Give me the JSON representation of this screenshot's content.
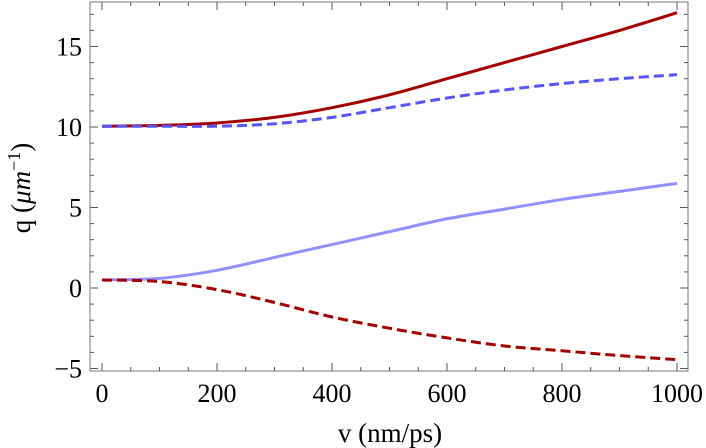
{
  "chart_data": {
    "type": "line",
    "title": "",
    "xlabel": "v (nm/ps)",
    "ylabel_main": "q (",
    "ylabel_unit": "μm",
    "ylabel_exp": "−1",
    "ylabel_close": ")",
    "xlim": [
      -20,
      1010
    ],
    "ylim": [
      -5.1,
      17.8
    ],
    "xticks": [
      0,
      200,
      400,
      600,
      800,
      1000
    ],
    "xtick_labels": [
      "0",
      "200",
      "400",
      "600",
      "800",
      "1000"
    ],
    "yticks": [
      -5,
      0,
      5,
      10,
      15
    ],
    "ytick_labels": [
      "−5",
      "0",
      "5",
      "10",
      "15"
    ],
    "x_minor_step": 50,
    "y_minor_step": 1,
    "grid": false,
    "x": [
      0,
      100,
      200,
      300,
      400,
      500,
      600,
      700,
      800,
      900,
      1000
    ],
    "series": [
      {
        "name": "upper-solid",
        "color": "#a50000",
        "dashed": false,
        "values": [
          10.05,
          10.1,
          10.25,
          10.6,
          11.2,
          12.0,
          13.0,
          14.0,
          15.0,
          16.0,
          17.1
        ]
      },
      {
        "name": "upper-dashed",
        "color": "#5555ff",
        "dashed": true,
        "values": [
          10.05,
          10.05,
          10.05,
          10.2,
          10.6,
          11.2,
          11.8,
          12.3,
          12.7,
          13.0,
          13.25
        ]
      },
      {
        "name": "lower-solid",
        "color": "#9090ff",
        "dashed": false,
        "values": [
          0.5,
          0.6,
          1.1,
          1.9,
          2.7,
          3.5,
          4.3,
          4.9,
          5.5,
          6.0,
          6.5
        ]
      },
      {
        "name": "lower-dashed",
        "color": "#a50000",
        "dashed": true,
        "values": [
          0.5,
          0.4,
          -0.1,
          -0.9,
          -1.8,
          -2.5,
          -3.1,
          -3.6,
          -3.9,
          -4.2,
          -4.45
        ]
      }
    ]
  }
}
